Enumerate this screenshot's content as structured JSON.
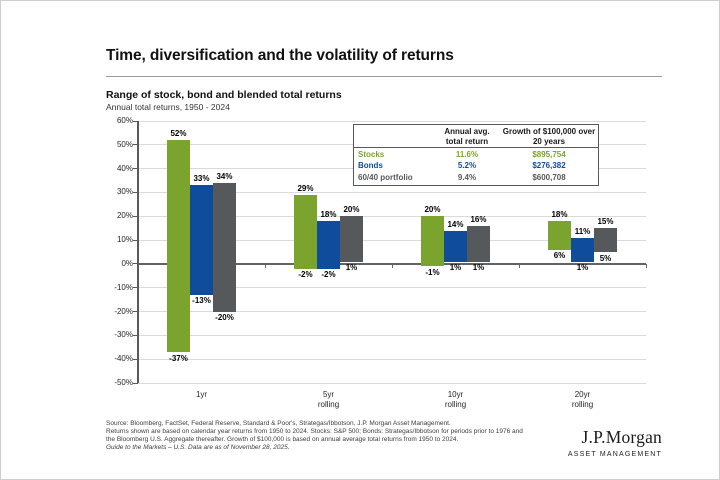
{
  "slide": {
    "title": "Time, diversification and the volatility of returns",
    "chart_heading": "Range of stock, bond and blended total returns",
    "chart_subheading": "Annual total returns, 1950 - 2024"
  },
  "chart_data": {
    "type": "bar",
    "variant": "floating-range-columns",
    "title": "Range of stock, bond and blended total returns",
    "subtitle": "Annual total returns, 1950 - 2024",
    "categories": [
      "1yr",
      "5yr rolling",
      "10yr rolling",
      "20yr rolling"
    ],
    "series": [
      {
        "name": "Stocks",
        "color": "#7ba42e",
        "ranges": [
          {
            "min": -37,
            "max": 52
          },
          {
            "min": -2,
            "max": 29
          },
          {
            "min": -1,
            "max": 20
          },
          {
            "min": 6,
            "max": 18
          }
        ]
      },
      {
        "name": "Bonds",
        "color": "#0f4d9c",
        "ranges": [
          {
            "min": -13,
            "max": 33
          },
          {
            "min": -2,
            "max": 18
          },
          {
            "min": 1,
            "max": 14
          },
          {
            "min": 1,
            "max": 11
          }
        ]
      },
      {
        "name": "60/40 portfolio",
        "color": "#55595c",
        "ranges": [
          {
            "min": -20,
            "max": 34
          },
          {
            "min": 1,
            "max": 20
          },
          {
            "min": 1,
            "max": 16
          },
          {
            "min": 5,
            "max": 15
          }
        ]
      }
    ],
    "ylim": [
      -50,
      60
    ],
    "ytick_step": 10,
    "y_unit": "%",
    "grid": true,
    "legend_position": "table-top-right"
  },
  "table": {
    "headers": {
      "annual": [
        "Annual avg.",
        "total return"
      ],
      "growth": [
        "Growth of $100,000 over",
        "20 years"
      ]
    },
    "rows": [
      {
        "label": "Stocks",
        "annual": "11.6%",
        "growth": "$895,754",
        "color": "#7ba42e"
      },
      {
        "label": "Bonds",
        "annual": "5.2%",
        "growth": "$276,382",
        "color": "#0f4d9c"
      },
      {
        "label": "60/40 portfolio",
        "annual": "9.4%",
        "growth": "$600,708",
        "color": "#55595c"
      }
    ]
  },
  "footnote": {
    "lines": [
      "Source: Bloomberg, FactSet, Federal Reserve, Standard & Poor's, Strategas/Ibbotson, J.P. Morgan Asset Management.",
      "Returns shown are based on calendar year returns from 1950 to 2024. Stocks: S&P 500; Bonds: Strategas/Ibbotson for periods prior to 1976 and",
      "the Bloomberg U.S. Aggregate thereafter. Growth of $100,000 is based on annual average total returns from 1950 to 2024.",
      "Guide to the Markets – U.S. Data are as of November 28, 2025."
    ]
  },
  "logo": {
    "name": "J.P.Morgan",
    "subtitle": "ASSET MANAGEMENT"
  }
}
